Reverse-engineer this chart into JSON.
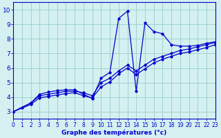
{
  "xlabel": "Graphe des températures (°c)",
  "bg_color": "#d4f0f0",
  "grid_color": "#99cccc",
  "line_color": "#0000cc",
  "xlim": [
    0,
    23
  ],
  "ylim": [
    2.5,
    10.5
  ],
  "yticks": [
    3,
    4,
    5,
    6,
    7,
    8,
    9,
    10
  ],
  "xticks": [
    0,
    1,
    2,
    3,
    4,
    5,
    6,
    7,
    8,
    9,
    10,
    11,
    12,
    13,
    14,
    15,
    16,
    17,
    18,
    19,
    20,
    21,
    22,
    23
  ],
  "line1_x": [
    0,
    1,
    2,
    3,
    4,
    5,
    6,
    7,
    8,
    9,
    10,
    11,
    12,
    13,
    14,
    15,
    16,
    17,
    18,
    19,
    20,
    21,
    22,
    23
  ],
  "line1_y": [
    3.0,
    3.3,
    3.6,
    4.2,
    4.35,
    4.45,
    4.5,
    4.5,
    4.2,
    3.9,
    5.3,
    5.7,
    9.4,
    9.9,
    4.4,
    9.1,
    8.5,
    8.35,
    7.6,
    7.5,
    7.5,
    7.55,
    7.7,
    7.8
  ],
  "line2_x": [
    0,
    2,
    3,
    4,
    5,
    6,
    7,
    8,
    9,
    10,
    11,
    12,
    13,
    14,
    15,
    16,
    17,
    18,
    19,
    20,
    21,
    22,
    23
  ],
  "line2_y": [
    3.0,
    3.6,
    4.1,
    4.2,
    4.3,
    4.4,
    4.4,
    4.3,
    4.1,
    5.0,
    5.3,
    5.8,
    6.2,
    5.8,
    6.2,
    6.6,
    6.8,
    7.0,
    7.2,
    7.3,
    7.45,
    7.6,
    7.75
  ],
  "line3_x": [
    0,
    2,
    3,
    4,
    5,
    6,
    7,
    8,
    9,
    10,
    11,
    12,
    13,
    14,
    15,
    16,
    17,
    18,
    19,
    20,
    21,
    22,
    23
  ],
  "line3_y": [
    3.0,
    3.5,
    3.95,
    4.05,
    4.15,
    4.25,
    4.3,
    4.1,
    3.95,
    4.7,
    5.05,
    5.6,
    6.0,
    5.55,
    5.95,
    6.35,
    6.6,
    6.8,
    7.0,
    7.1,
    7.25,
    7.4,
    7.6
  ]
}
